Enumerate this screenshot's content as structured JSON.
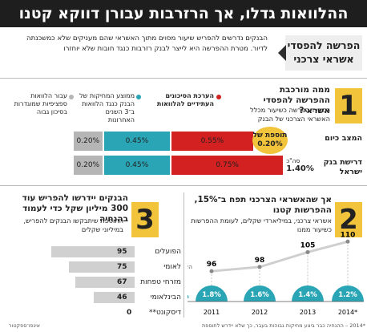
{
  "header": {
    "title": "ההלוואות גדלו, אך הרזרבות עבורן דווקא קטנו",
    "side_tag": "הפרשה להפסדי אשראי צרכני",
    "intro": "הבנקים נדרשים להפריש שיעור מסוים מתוך האשראי שהם מעניקים שלא כמשכנתה לדיור. מטרת ההפרשה היא לייצר לבנק רזרבות כנגד חובות שלא יוחזרו"
  },
  "section1": {
    "number": "1",
    "title": "ממה מורכבת ההפרשה להפסדי אשראי?",
    "subtitle": "רכיבי ההפרשה כשיעור מכלל האשראי הצרכני של הבנק",
    "legend": [
      {
        "label": "הערכת הסיכונים העתידיים להלוואות",
        "color": "#d32020"
      },
      {
        "label": "ממוצע המחיקות של הבנק כנגד הלוואות ב־3 השנים האחרונות",
        "color": "#2aa5b5"
      },
      {
        "label": "עבור הלוואות ספציפיות שמוגדרות בסיכון גבוה",
        "color": "#b5b5b5"
      }
    ],
    "addon_bubble": "תוספת של 0.20%",
    "sum_prefix": "סה\"כ"
  },
  "section2": {
    "number": "2",
    "title": "אך שהאשראי הצרכני תפח ב־15%, ההפרשות קטנו",
    "title_rest": "אשראי צרכני, במיליארדי שקלים, לעומת ההפרשות כשיעור ממנו",
    "series_label_credit": "האשראי הצרכני",
    "series_label_prov": "ההפרשות"
  },
  "section3": {
    "number": "3",
    "title": "הבנקים יידרשו להפריש עוד 300 מיליון שקל כדי לעמוד בהנחיה",
    "subtitle": "התוספת שיתבקשו הבנקים להפריש, במיליוני שקלים"
  },
  "footer": {
    "source": "אינפו־ספקטור",
    "note": "*2014 – ההנחיה כבר ביצע מחיקות גבוהות בעבר, כך שלא יידרש לתוספת"
  },
  "chart_data": [
    {
      "type": "bar",
      "title": "ממה מורכבת ההפרשה להפסדי אשראי?",
      "stacked": true,
      "orientation": "horizontal",
      "categories": [
        "המצב כיום",
        "דרישת בנק ישראל"
      ],
      "series": [
        {
          "name": "הערכת הסיכונים העתידיים להלוואות",
          "color": "#d32020",
          "values": [
            0.55,
            0.75
          ],
          "labels": [
            "0.55%",
            "0.75%"
          ]
        },
        {
          "name": "ממוצע המחיקות של הבנק כנגד הלוואות ב־3 השנים האחרונות",
          "color": "#2aa5b5",
          "values": [
            0.45,
            0.45
          ],
          "labels": [
            "0.45%",
            "0.45%"
          ]
        },
        {
          "name": "עבור הלוואות ספציפיות שמוגדרות בסיכון גבוה",
          "color": "#b5b5b5",
          "values": [
            0.2,
            0.2
          ],
          "labels": [
            "0.20%",
            "0.20%"
          ]
        }
      ],
      "totals": [
        "1.20%",
        "1.40%"
      ]
    },
    {
      "type": "line",
      "title": "אך שהאשראי הצרכני תפח ב־15%, ההפרשות קטנו",
      "x": [
        "2011",
        "2012",
        "2013",
        "*2014"
      ],
      "series": [
        {
          "name": "האשראי הצרכני",
          "values": [
            96,
            98,
            105,
            110
          ],
          "color": "#cccccc"
        },
        {
          "name": "ההפרשות",
          "values": [
            1.8,
            1.6,
            1.4,
            1.2
          ],
          "labels": [
            "1.8%",
            "1.6%",
            "1.4%",
            "1.2%"
          ],
          "color": "#2aa5b5"
        }
      ],
      "ylim": [
        90,
        112
      ]
    },
    {
      "type": "bar",
      "title": "הבנקים יידרשו להפריש עוד 300 מיליון שקל כדי לעמוד בהנחיה",
      "orientation": "horizontal",
      "categories": [
        "הפועלים",
        "לאומי",
        "מזרחי טפחות",
        "הבינלאומי",
        "דיסקונט**"
      ],
      "values": [
        95,
        75,
        67,
        46,
        0
      ],
      "xlim": [
        0,
        100
      ]
    }
  ]
}
